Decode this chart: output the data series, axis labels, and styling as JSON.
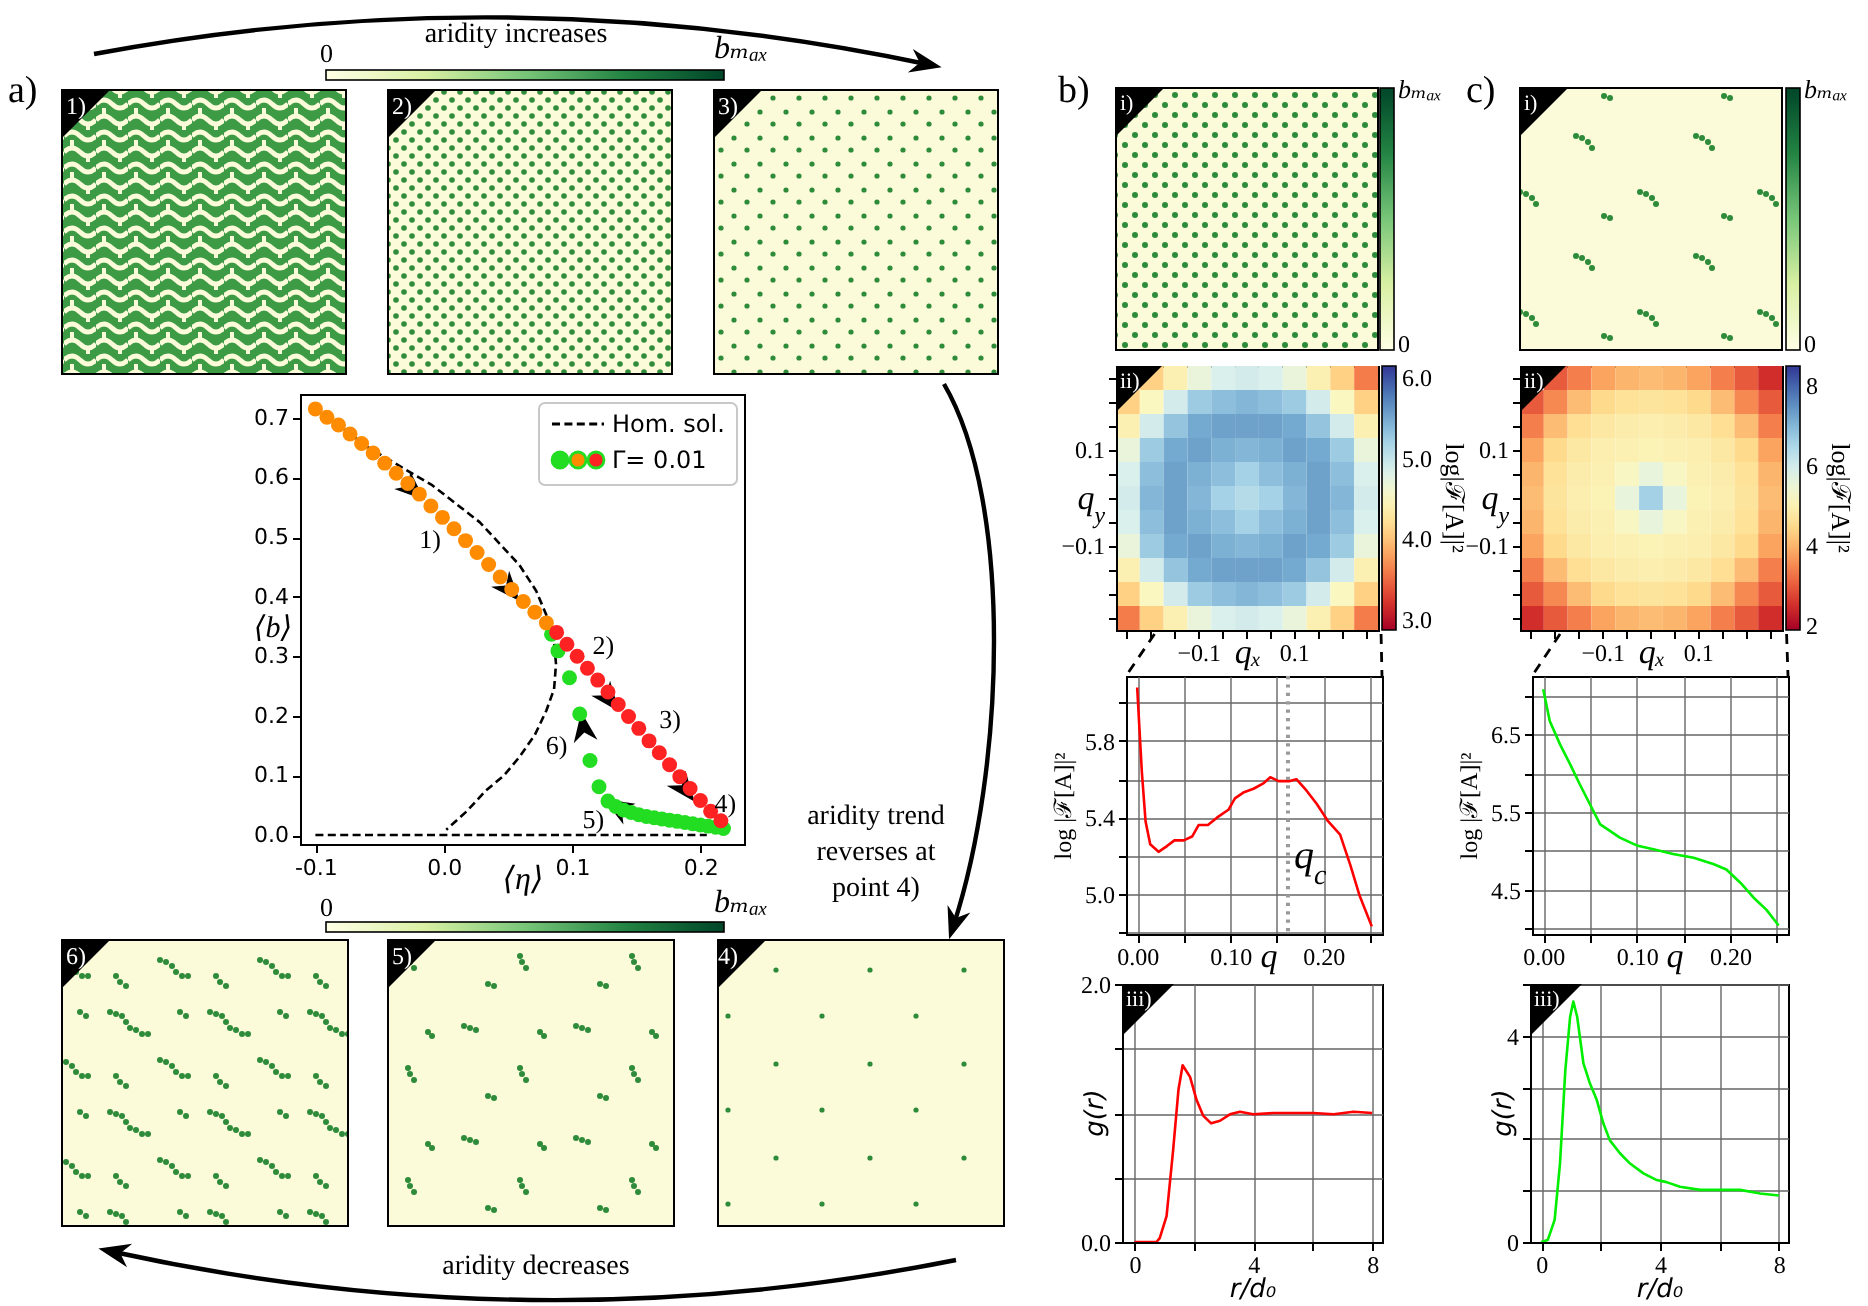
{
  "chart_data": [
    {
      "type": "other",
      "annotations": [
        "a)",
        "b)",
        "c)",
        "aridity increases",
        "0",
        "bₘₐₓ",
        "1)",
        "2)",
        "3)",
        "aridity trend reverses at point 4)",
        "0",
        "bₘₐₓ",
        "6)",
        "5)",
        "4)",
        "aridity decreases",
        "i)",
        "bₘₐₓ",
        "0",
        "i)",
        "bₘₐₓ",
        "0"
      ]
    },
    {
      "type": "scatter",
      "xlabel": "⟨η⟩",
      "ylabel": "⟨b⟩",
      "xlim": [
        -0.112,
        0.234
      ],
      "ylim": [
        -0.015,
        0.74
      ],
      "xticks": [
        -0.1,
        {
          "value": 0,
          "label": "0.0"
        },
        0.1,
        0.2
      ],
      "yticks": [
        {
          "value": 0,
          "label": "0.0"
        },
        0.1,
        0.2,
        0.3,
        0.4,
        0.5,
        0.6,
        0.7
      ],
      "legend": "top right",
      "series": [
        {
          "name": "Hom. sol.",
          "type": "line",
          "color": "#000000",
          "line_style": "dashed",
          "x": [
            -0.1,
            -0.061,
            -0.009,
            0.028,
            0.059,
            0.072,
            0.081,
            0.086,
            0.0875,
            0.086,
            0.08,
            0.071,
            0.059,
            0.047,
            0.033,
            0.018,
            0.002
          ],
          "values": [
            0.72,
            0.653,
            0.587,
            0.525,
            0.453,
            0.41,
            0.364,
            0.325,
            0.287,
            0.245,
            0.209,
            0.168,
            0.131,
            0.1,
            0.075,
            0.04,
            0.009
          ]
        },
        {
          "type": "line",
          "color": "#000000",
          "line_style": "dashed",
          "x": [
            -0.1,
            0.205
          ],
          "values": [
            0,
            0
          ]
        },
        {
          "name": "Γ= 0.01",
          "type": "scatter",
          "marker": "circle",
          "x": [
            0.084,
            0.089,
            0.098,
            0.106,
            0.114,
            0.121,
            0.128,
            0.134,
            0.14,
            0.146,
            0.152,
            0.158,
            0.164,
            0.17,
            0.176,
            0.182,
            0.188,
            0.194,
            0.2,
            0.206,
            0.212,
            0.218,
            -0.1,
            -0.091,
            -0.082,
            -0.073,
            -0.064,
            -0.055,
            -0.046,
            -0.037,
            -0.028,
            -0.019,
            -0.01,
            -0.001,
            0.008,
            0.017,
            0.026,
            0.035,
            0.044,
            0.053,
            0.062,
            0.071,
            0.08,
            0.088,
            0.096,
            0.104,
            0.112,
            0.12,
            0.128,
            0.136,
            0.144,
            0.152,
            0.16,
            0.168,
            0.176,
            0.184,
            0.192,
            0.2,
            0.208,
            0.216
          ],
          "values": [
            0.337,
            0.309,
            0.264,
            0.203,
            0.125,
            0.081,
            0.057,
            0.048,
            0.042,
            0.038,
            0.034,
            0.031,
            0.029,
            0.027,
            0.025,
            0.023,
            0.021,
            0.019,
            0.017,
            0.015,
            0.013,
            0.011,
            0.715,
            0.701,
            0.688,
            0.673,
            0.657,
            0.641,
            0.624,
            0.607,
            0.59,
            0.572,
            0.552,
            0.533,
            0.514,
            0.494,
            0.474,
            0.454,
            0.433,
            0.412,
            0.392,
            0.374,
            0.356,
            0.34,
            0.32,
            0.3,
            0.28,
            0.26,
            0.24,
            0.219,
            0.199,
            0.179,
            0.158,
            0.138,
            0.118,
            0.098,
            0.078,
            0.058,
            0.04,
            0.024
          ],
          "colors": [
            "#22dd22",
            "#22dd22",
            "#22dd22",
            "#22dd22",
            "#22dd22",
            "#22dd22",
            "#22dd22",
            "#22dd22",
            "#22dd22",
            "#22dd22",
            "#22dd22",
            "#22dd22",
            "#22dd22",
            "#22dd22",
            "#22dd22",
            "#22dd22",
            "#22dd22",
            "#22dd22",
            "#22dd22",
            "#22dd22",
            "#22dd22",
            "#22dd22",
            "#ff8c00",
            "#ff8c00",
            "#ff8c00",
            "#ff8c00",
            "#ff8c00",
            "#ff8c00",
            "#ff8c00",
            "#ff8c00",
            "#ff8c00",
            "#ff8c00",
            "#ff8c00",
            "#ff8c00",
            "#ff8c00",
            "#ff8c00",
            "#ff8c00",
            "#ff8c00",
            "#ff8c00",
            "#ff8c00",
            "#ff8c00",
            "#ff8c00",
            "#ff8c00",
            "#ff2222",
            "#ff2222",
            "#ff2222",
            "#ff2222",
            "#ff2222",
            "#ff2222",
            "#ff2222",
            "#ff2222",
            "#ff2222",
            "#ff2222",
            "#ff2222",
            "#ff2222",
            "#ff2222",
            "#ff2222",
            "#ff2222",
            "#ff2222",
            "#ff2222"
          ]
        }
      ],
      "annotations": [
        "1)",
        "2)",
        "3)",
        "4)",
        "5)",
        "6)"
      ]
    },
    {
      "type": "heatmap",
      "xlabel": "qₓ",
      "ylabel": "q$_{y}$",
      "clabel": "log|ℱ[A]|²",
      "categories": [
        null,
        null,
        null,
        "−0.1",
        null,
        null,
        null,
        "0.1",
        null,
        null,
        null
      ],
      "y_categories": [
        null,
        null,
        null,
        "0.1",
        null,
        null,
        null,
        "−0.1",
        null,
        null,
        null
      ],
      "cells": [
        [
          null,
          4.1,
          4.4,
          4.7,
          4.85,
          4.9,
          4.85,
          4.7,
          4.4,
          4.1,
          3.6
        ],
        [
          4.1,
          4.5,
          4.9,
          5.25,
          5.35,
          5.4,
          5.35,
          5.25,
          4.9,
          4.5,
          4.1
        ],
        [
          4.4,
          4.9,
          5.3,
          5.5,
          5.55,
          5.55,
          5.55,
          5.5,
          5.3,
          4.9,
          4.4
        ],
        [
          4.7,
          5.25,
          5.5,
          5.55,
          5.45,
          5.4,
          5.45,
          5.55,
          5.5,
          5.25,
          4.7
        ],
        [
          4.85,
          5.35,
          5.55,
          5.45,
          5.35,
          5.2,
          5.35,
          5.45,
          5.55,
          5.35,
          4.85
        ],
        [
          4.9,
          5.4,
          5.55,
          5.4,
          5.2,
          5.1,
          5.2,
          5.4,
          5.55,
          5.4,
          4.9
        ],
        [
          4.85,
          5.35,
          5.55,
          5.45,
          5.35,
          5.2,
          5.35,
          5.45,
          5.55,
          5.35,
          4.85
        ],
        [
          4.7,
          5.25,
          5.5,
          5.55,
          5.45,
          5.4,
          5.45,
          5.55,
          5.5,
          5.25,
          4.7
        ],
        [
          4.4,
          4.9,
          5.3,
          5.5,
          5.55,
          5.55,
          5.55,
          5.5,
          5.3,
          4.9,
          4.4
        ],
        [
          4.1,
          4.5,
          4.9,
          5.25,
          5.35,
          5.4,
          5.35,
          5.25,
          4.9,
          4.5,
          4.1
        ],
        [
          3.6,
          4.1,
          4.4,
          4.7,
          4.85,
          4.9,
          4.85,
          4.7,
          4.4,
          4.1,
          3.6
        ]
      ],
      "clim": [
        2.87,
        6.15
      ],
      "cticks": [
        {
          "value": 3,
          "label": "3.0"
        },
        {
          "value": 4,
          "label": "4.0"
        },
        {
          "value": 5,
          "label": "5.0"
        },
        {
          "value": 6,
          "label": "6.0"
        }
      ],
      "annotations": [
        "ii)"
      ]
    },
    {
      "type": "line",
      "xlabel": "q",
      "ylabel": "log |ℱ[A]|²",
      "xlim": [
        -0.012,
        0.263
      ],
      "ylim": [
        4.79,
        6.14
      ],
      "xticks": [
        {
          "value": 0,
          "label": "0.00"
        },
        {
          "value": 0.05,
          "label": null
        },
        {
          "value": 0.1,
          "label": "0.10"
        },
        {
          "value": 0.15,
          "label": null
        },
        {
          "value": 0.2,
          "label": "0.20"
        },
        {
          "value": 0.25,
          "label": null
        }
      ],
      "yticks": [
        {
          "value": 4.8,
          "label": null
        },
        {
          "value": 5,
          "label": "5.0"
        },
        {
          "value": 5.2,
          "label": null
        },
        5.4,
        {
          "value": 5.6,
          "label": null
        },
        5.8,
        {
          "value": 6,
          "label": null
        }
      ],
      "grid": true,
      "x": [
        0,
        0.005,
        0.009,
        0.014,
        0.023,
        0.032,
        0.04,
        0.05,
        0.059,
        0.066,
        0.076,
        0.086,
        0.098,
        0.105,
        0.114,
        0.125,
        0.136,
        0.143,
        0.152,
        0.164,
        0.171,
        0.182,
        0.193,
        0.205,
        0.218,
        0.229,
        0.239,
        0.252
      ],
      "series": [
        {
          "color": "#ff0000",
          "values": [
            6.08,
            5.64,
            5.38,
            5.26,
            5.22,
            5.25,
            5.28,
            5.28,
            5.3,
            5.36,
            5.36,
            5.4,
            5.44,
            5.5,
            5.53,
            5.55,
            5.58,
            5.61,
            5.59,
            5.59,
            5.6,
            5.54,
            5.47,
            5.38,
            5.31,
            5.15,
            4.99,
            4.83
          ]
        }
      ],
      "ref_lines": [
        {
          "axis": "x",
          "value": 0.162,
          "label": "q$_{c}$",
          "color": "#999999",
          "line_style": "dotted"
        }
      ]
    },
    {
      "type": "line",
      "xlabel": "r/d₀",
      "ylabel": "g(r)",
      "xlim": [
        -0.42,
        8.33
      ],
      "ylim": [
        0,
        2
      ],
      "xticks": [
        0,
        {
          "value": 2,
          "label": null
        },
        4,
        {
          "value": 6,
          "label": null
        },
        8
      ],
      "yticks": [
        {
          "value": 0,
          "label": "0.0"
        },
        {
          "value": 0.5,
          "label": null
        },
        {
          "value": 1,
          "label": null
        },
        {
          "value": 1.5,
          "label": null
        },
        {
          "value": 2,
          "label": "2.0"
        }
      ],
      "grid": true,
      "x": [
        0,
        0.74,
        0.85,
        1.08,
        1.3,
        1.48,
        1.62,
        1.87,
        2.09,
        2.31,
        2.58,
        2.88,
        3.21,
        3.55,
        4,
        4.67,
        5.35,
        6.02,
        6.7,
        7.37,
        8
      ],
      "series": [
        {
          "color": "#ff0000",
          "values": [
            0,
            0,
            0.03,
            0.2,
            0.71,
            1.18,
            1.37,
            1.28,
            1.1,
            0.98,
            0.92,
            0.94,
            0.99,
            1.01,
            0.99,
            1,
            1,
            1,
            0.99,
            1.01,
            1
          ]
        }
      ],
      "annotations": [
        "iii)"
      ]
    },
    {
      "type": "heatmap",
      "xlabel": "qₓ",
      "ylabel": "q$_{y}$",
      "clabel": "log|ℱ[A]|²",
      "categories": [
        null,
        null,
        null,
        "−0.1",
        null,
        null,
        null,
        "0.1",
        null,
        null,
        null
      ],
      "y_categories": [
        null,
        null,
        null,
        "0.1",
        null,
        null,
        null,
        "−0.1",
        null,
        null,
        null
      ],
      "cells": [
        [
          null,
          3,
          3.4,
          3.8,
          4,
          4.1,
          4,
          3.8,
          3.4,
          3,
          2.5
        ],
        [
          3,
          3.5,
          4.1,
          4.5,
          4.65,
          4.7,
          4.65,
          4.5,
          4.1,
          3.5,
          3
        ],
        [
          3.4,
          4.1,
          4.6,
          4.8,
          4.9,
          4.95,
          4.9,
          4.8,
          4.6,
          4.1,
          3.4
        ],
        [
          3.8,
          4.5,
          4.8,
          4.95,
          5,
          5.05,
          5,
          4.95,
          4.8,
          4.5,
          3.8
        ],
        [
          4,
          4.65,
          4.9,
          5,
          5.25,
          5.6,
          5.25,
          5,
          4.9,
          4.65,
          4
        ],
        [
          4.1,
          4.7,
          4.95,
          5.05,
          5.6,
          6.6,
          5.6,
          5.05,
          4.95,
          4.7,
          4.1
        ],
        [
          4,
          4.65,
          4.9,
          5,
          5.25,
          5.6,
          5.25,
          5,
          4.9,
          4.65,
          4
        ],
        [
          3.8,
          4.5,
          4.8,
          4.95,
          5,
          5.05,
          5,
          4.95,
          4.8,
          4.5,
          3.8
        ],
        [
          3.4,
          4.1,
          4.6,
          4.8,
          4.9,
          4.95,
          4.9,
          4.8,
          4.6,
          4.1,
          3.4
        ],
        [
          3,
          3.5,
          4.1,
          4.5,
          4.65,
          4.7,
          4.65,
          4.5,
          4.1,
          3.5,
          3
        ],
        [
          2.5,
          3,
          3.4,
          3.8,
          4,
          4.1,
          4,
          3.8,
          3.4,
          3,
          2.5
        ]
      ],
      "clim": [
        1.9,
        8.5
      ],
      "cticks": [
        2,
        4,
        6,
        8
      ],
      "annotations": [
        "ii)"
      ]
    },
    {
      "type": "line",
      "xlabel": "q",
      "ylabel": "log |ℱ[A]|²",
      "xlim": [
        -0.012,
        0.262
      ],
      "ylim": [
        3.93,
        7.25
      ],
      "xticks": [
        {
          "value": 0,
          "label": "0.00"
        },
        {
          "value": 0.05,
          "label": null
        },
        {
          "value": 0.1,
          "label": "0.10"
        },
        {
          "value": 0.15,
          "label": null
        },
        {
          "value": 0.2,
          "label": "0.20"
        },
        {
          "value": 0.25,
          "label": null
        }
      ],
      "yticks": [
        {
          "value": 4,
          "label": null
        },
        4.5,
        {
          "value": 5,
          "label": null
        },
        5.5,
        {
          "value": 6,
          "label": null
        },
        6.5,
        {
          "value": 7,
          "label": null
        }
      ],
      "grid": true,
      "x": [
        0,
        0.007,
        0.018,
        0.029,
        0.039,
        0.05,
        0.061,
        0.071,
        0.082,
        0.1,
        0.118,
        0.139,
        0.161,
        0.182,
        0.196,
        0.211,
        0.225,
        0.239,
        0.252
      ],
      "series": [
        {
          "color": "#00ee00",
          "values": [
            7.08,
            6.67,
            6.37,
            6.11,
            5.86,
            5.6,
            5.34,
            5.26,
            5.17,
            5.07,
            5.02,
            4.96,
            4.91,
            4.83,
            4.76,
            4.59,
            4.4,
            4.24,
            4.04
          ]
        }
      ]
    },
    {
      "type": "line",
      "xlabel": "r/d₀",
      "ylabel": "g(r)",
      "xlim": [
        -0.38,
        8.31
      ],
      "ylim": [
        0,
        5
      ],
      "xticks": [
        0,
        {
          "value": 2,
          "label": null
        },
        4,
        {
          "value": 6,
          "label": null
        },
        8
      ],
      "yticks": [
        0,
        {
          "value": 1,
          "label": null
        },
        {
          "value": 2,
          "label": null
        },
        {
          "value": 3,
          "label": null
        },
        4,
        {
          "value": 5,
          "label": null
        }
      ],
      "grid": true,
      "x": [
        0,
        0.22,
        0.45,
        0.63,
        0.81,
        0.97,
        1.08,
        1.21,
        1.42,
        1.64,
        1.87,
        2.09,
        2.31,
        2.65,
        2.99,
        3.44,
        3.89,
        4.22,
        4.67,
        5.35,
        6.02,
        6.7,
        7.37,
        8
      ],
      "series": [
        {
          "color": "#00ee00",
          "values": [
            0,
            0.04,
            0.43,
            1.52,
            3.33,
            4.36,
            4.66,
            4.36,
            3.46,
            3.07,
            2.75,
            2.3,
            1.97,
            1.72,
            1.52,
            1.33,
            1.2,
            1.16,
            1.07,
            1.01,
            1.01,
            1.01,
            0.94,
            0.9
          ]
        }
      ],
      "annotations": [
        "iii)"
      ]
    }
  ]
}
